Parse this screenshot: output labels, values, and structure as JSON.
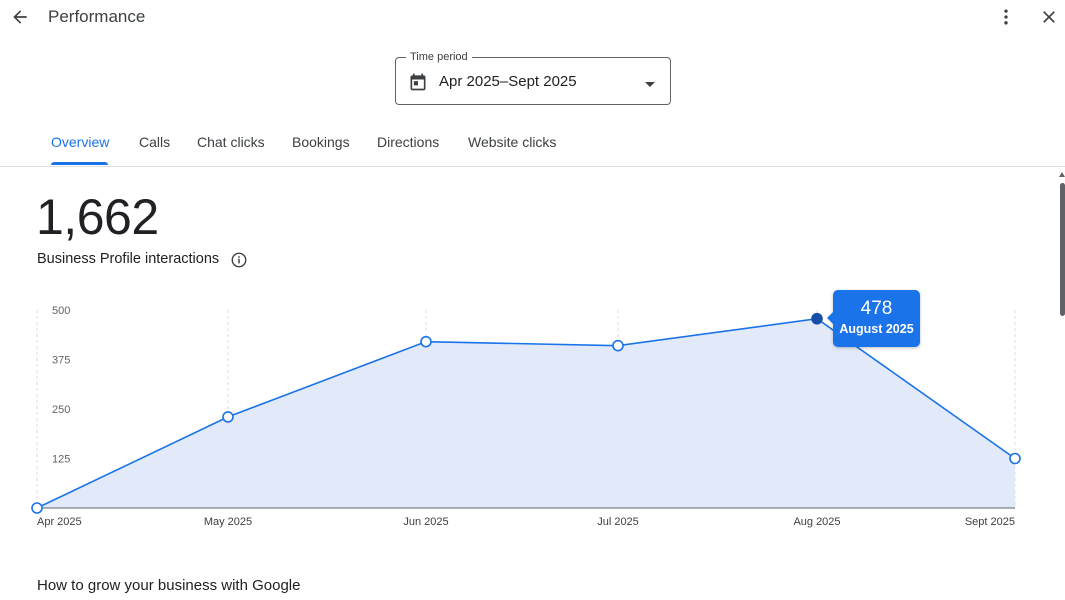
{
  "header": {
    "title": "Performance",
    "back_icon": "arrow-back-icon",
    "more_icon": "more-vert-icon",
    "close_icon": "close-icon"
  },
  "time_period": {
    "label": "Time period",
    "value": "Apr 2025–Sept 2025",
    "icon": "calendar-icon"
  },
  "tabs": [
    {
      "label": "Overview",
      "active": true
    },
    {
      "label": "Calls",
      "active": false
    },
    {
      "label": "Chat clicks",
      "active": false
    },
    {
      "label": "Bookings",
      "active": false
    },
    {
      "label": "Directions",
      "active": false
    },
    {
      "label": "Website clicks",
      "active": false
    }
  ],
  "summary": {
    "total": "1,662",
    "label": "Business Profile interactions",
    "info_icon": "info-icon"
  },
  "chart_data": {
    "type": "area",
    "categories": [
      "Apr 2025",
      "May 2025",
      "Jun 2025",
      "Jul 2025",
      "Aug 2025",
      "Sept 2025"
    ],
    "values": [
      0,
      230,
      420,
      410,
      478,
      125
    ],
    "yticks": [
      500,
      375,
      250,
      125
    ],
    "ylim": [
      0,
      500
    ],
    "grid": true,
    "colors": {
      "line": "#1a73e8",
      "fill": "#e2eafa",
      "highlight": "#174ea6"
    },
    "highlight_index": 4,
    "tooltip": {
      "value": "478",
      "label": "August 2025"
    }
  },
  "footer": {
    "heading": "How to grow your business with Google"
  }
}
